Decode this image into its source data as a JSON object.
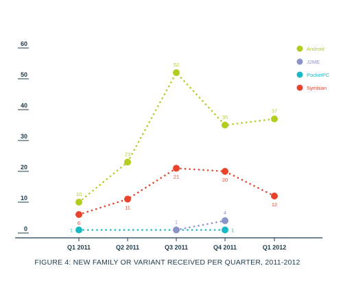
{
  "chart_data": {
    "type": "line",
    "title": "FIGURE 4: NEW FAMILY OR VARIANT RECEIVED PER QUARTER, 2011-2012",
    "xlabel": "",
    "ylabel": "",
    "categories": [
      "Q1 2011",
      "Q2 2011",
      "Q3 2011",
      "Q4 2011",
      "Q1 2012"
    ],
    "ylim": [
      0,
      60
    ],
    "yticks": [
      0,
      10,
      20,
      30,
      40,
      50,
      60
    ],
    "ytick_labels": [
      "0",
      "10",
      "20",
      "30",
      "40",
      "50",
      "60"
    ],
    "grid": false,
    "legend_position": "top-right",
    "series": [
      {
        "name": "Android",
        "color": "#b4cc1e",
        "values": [
          10,
          23,
          52,
          35,
          37
        ],
        "labels": [
          "10",
          "23",
          "52",
          "35",
          "37"
        ],
        "label_position": "above"
      },
      {
        "name": "J2ME",
        "color": "#8b93c9",
        "values": [
          null,
          null,
          1,
          4,
          null
        ],
        "labels": [
          null,
          null,
          "1",
          "4",
          null
        ],
        "label_position": "above"
      },
      {
        "name": "PocketPC",
        "color": "#1ab8c4",
        "values": [
          1,
          null,
          null,
          1,
          null
        ],
        "labels": [
          "1",
          null,
          null,
          "1",
          null
        ],
        "label_position": "side"
      },
      {
        "name": "Symbian",
        "color": "#e8432c",
        "values": [
          6,
          11,
          21,
          20,
          12
        ],
        "labels": [
          "6",
          "11",
          "21",
          "20",
          "12"
        ],
        "label_position": "below"
      }
    ]
  }
}
